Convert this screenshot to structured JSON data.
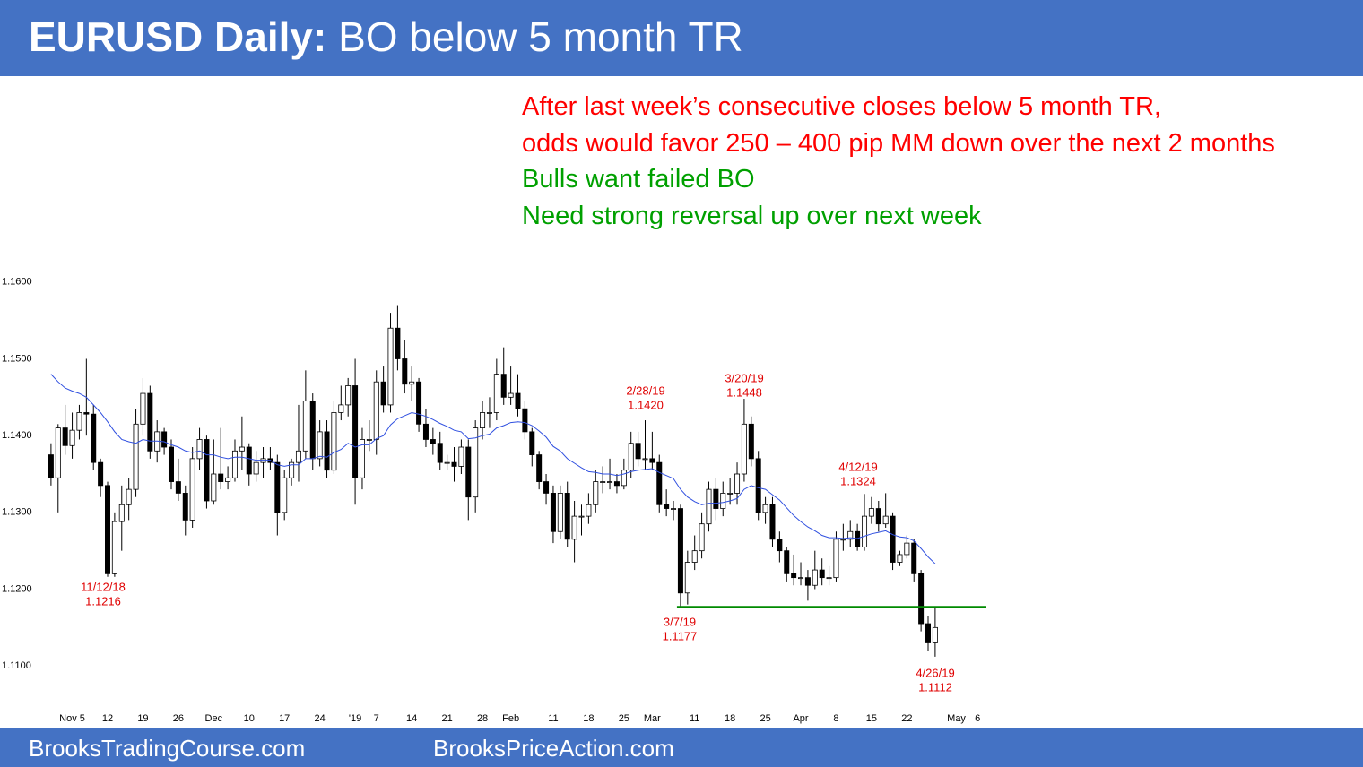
{
  "header": {
    "title_bold": "EURUSD Daily:",
    "title_rest": "BO below 5 month TR"
  },
  "notes": [
    {
      "text": "After last week’s consecutive closes below 5 month TR,",
      "color": "#ff0000"
    },
    {
      "text": "odds would favor 250 – 400 pip MM down over the next 2 months",
      "color": "#ff0000"
    },
    {
      "text": "Bulls want failed BO",
      "color": "#00a000"
    },
    {
      "text": "Need strong reversal up over next week",
      "color": "#00a000"
    }
  ],
  "footer": [
    "BrooksTradingCourse.com",
    "BrooksPriceAction.com"
  ],
  "chart_data": {
    "type": "candlestick",
    "categories": [
      null,
      null,
      null,
      "Nov 5",
      null,
      null,
      null,
      null,
      "12",
      null,
      null,
      null,
      null,
      "19",
      null,
      null,
      null,
      null,
      "26",
      null,
      null,
      null,
      null,
      "Dec",
      null,
      null,
      null,
      null,
      "10",
      null,
      null,
      null,
      null,
      "17",
      null,
      null,
      null,
      null,
      "24",
      null,
      null,
      null,
      null,
      "'19",
      null,
      null,
      "7",
      null,
      null,
      null,
      null,
      "14",
      null,
      null,
      null,
      null,
      "21",
      null,
      null,
      null,
      null,
      "28",
      null,
      null,
      null,
      "Feb",
      null,
      null,
      null,
      null,
      null,
      "11",
      null,
      null,
      null,
      null,
      "18",
      null,
      null,
      null,
      null,
      "25",
      null,
      null,
      null,
      "Mar",
      null,
      null,
      null,
      null,
      null,
      "11",
      null,
      null,
      null,
      null,
      "18",
      null,
      null,
      null,
      null,
      "25",
      null,
      null,
      null,
      null,
      "Apr",
      null,
      null,
      null,
      null,
      "8",
      null,
      null,
      null,
      null,
      "15",
      null,
      null,
      null,
      null,
      "22",
      null,
      null,
      null,
      null,
      null,
      null,
      "May",
      null,
      null,
      "6"
    ],
    "open": [
      1.1375,
      1.1345,
      1.141,
      1.1387,
      1.1407,
      1.143,
      1.1428,
      1.1365,
      1.1335,
      1.122,
      1.1288,
      1.131,
      1.133,
      1.1415,
      1.1455,
      1.138,
      1.1405,
      1.1385,
      1.134,
      1.1325,
      1.129,
      1.137,
      1.1395,
      1.1315,
      1.135,
      1.134,
      1.1345,
      1.138,
      1.1385,
      1.135,
      1.1365,
      1.137,
      1.1365,
      1.13,
      1.1345,
      1.1365,
      1.138,
      1.1445,
      1.137,
      1.1405,
      1.1355,
      1.143,
      1.144,
      1.1465,
      1.1345,
      1.1395,
      1.1395,
      1.147,
      1.144,
      1.154,
      1.15,
      1.1467,
      1.147,
      1.1415,
      1.1395,
      1.139,
      1.1365,
      1.1365,
      1.136,
      1.1385,
      1.132,
      1.141,
      1.143,
      1.143,
      1.148,
      1.145,
      1.1455,
      1.1435,
      1.1405,
      1.1375,
      1.134,
      1.1325,
      1.1275,
      1.1325,
      1.1265,
      1.1295,
      1.1295,
      1.131,
      1.134,
      1.134,
      1.134,
      1.1335,
      1.1355,
      1.139,
      1.137,
      1.137,
      1.1365,
      1.131,
      1.1305,
      1.1305,
      1.1195,
      1.1235,
      1.125,
      1.1285,
      1.133,
      1.1305,
      1.1325,
      1.1325,
      1.135,
      1.1415,
      1.137,
      1.13,
      1.131,
      1.1265,
      1.125,
      1.122,
      1.1215,
      1.1215,
      1.1205,
      1.1225,
      1.1215,
      1.1215,
      1.1265,
      1.1265,
      1.1275,
      1.1255,
      1.1295,
      1.1305,
      1.1285,
      1.1295,
      1.1235,
      1.1245,
      1.126,
      1.122,
      1.1155,
      1.113,
      null,
      null,
      null,
      null,
      null,
      null
    ],
    "high": [
      1.139,
      1.1415,
      1.144,
      1.143,
      1.144,
      1.15,
      1.144,
      1.137,
      1.134,
      1.13,
      1.1335,
      1.1345,
      1.1435,
      1.1475,
      1.1465,
      1.142,
      1.141,
      1.1395,
      1.137,
      1.1335,
      1.1385,
      1.141,
      1.14,
      1.1395,
      1.141,
      1.136,
      1.1395,
      1.1425,
      1.139,
      1.138,
      1.1385,
      1.1385,
      1.1375,
      1.1355,
      1.137,
      1.144,
      1.1485,
      1.1455,
      1.142,
      1.142,
      1.1445,
      1.1465,
      1.1475,
      1.15,
      1.141,
      1.142,
      1.1485,
      1.149,
      1.156,
      1.157,
      1.1525,
      1.149,
      1.1475,
      1.1435,
      1.141,
      1.1405,
      1.1375,
      1.1385,
      1.1395,
      1.1395,
      1.142,
      1.1445,
      1.145,
      1.15,
      1.1515,
      1.149,
      1.148,
      1.1445,
      1.141,
      1.138,
      1.135,
      1.1335,
      1.1335,
      1.134,
      1.1315,
      1.131,
      1.1325,
      1.1355,
      1.136,
      1.137,
      1.135,
      1.137,
      1.1405,
      1.1405,
      1.142,
      1.1405,
      1.1375,
      1.133,
      1.1315,
      1.131,
      1.125,
      1.127,
      1.13,
      1.134,
      1.1345,
      1.134,
      1.1345,
      1.1365,
      1.1448,
      1.1425,
      1.138,
      1.132,
      1.132,
      1.1275,
      1.1255,
      1.1245,
      1.1235,
      1.1225,
      1.125,
      1.124,
      1.123,
      1.1275,
      1.1285,
      1.129,
      1.1285,
      1.1324,
      1.132,
      1.1315,
      1.1325,
      1.13,
      1.125,
      1.127,
      1.1265,
      1.1225,
      1.1165,
      1.1175,
      null,
      null,
      null,
      null,
      null,
      null
    ],
    "low": [
      1.1335,
      1.13,
      1.1375,
      1.137,
      1.1395,
      1.14,
      1.1355,
      1.132,
      1.1216,
      1.1216,
      1.125,
      1.129,
      1.132,
      1.14,
      1.137,
      1.1365,
      1.1375,
      1.133,
      1.1315,
      1.127,
      1.128,
      1.1355,
      1.1305,
      1.131,
      1.133,
      1.133,
      1.134,
      1.1355,
      1.1335,
      1.134,
      1.1345,
      1.1355,
      1.127,
      1.129,
      1.1335,
      1.134,
      1.137,
      1.1355,
      1.136,
      1.1345,
      1.135,
      1.142,
      1.1425,
      1.131,
      1.133,
      1.138,
      1.1375,
      1.143,
      1.143,
      1.1485,
      1.1455,
      1.1445,
      1.1405,
      1.1385,
      1.1375,
      1.1355,
      1.1355,
      1.134,
      1.135,
      1.129,
      1.13,
      1.1395,
      1.141,
      1.142,
      1.144,
      1.144,
      1.1425,
      1.1395,
      1.136,
      1.133,
      1.131,
      1.126,
      1.1265,
      1.1255,
      1.1235,
      1.127,
      1.1285,
      1.13,
      1.1325,
      1.133,
      1.1325,
      1.133,
      1.1345,
      1.136,
      1.1355,
      1.1355,
      1.13,
      1.1295,
      1.129,
      1.1177,
      1.118,
      1.1225,
      1.124,
      1.1275,
      1.129,
      1.1295,
      1.131,
      1.131,
      1.134,
      1.136,
      1.129,
      1.1285,
      1.1255,
      1.1235,
      1.121,
      1.1205,
      1.1205,
      1.1185,
      1.12,
      1.1205,
      1.1205,
      1.121,
      1.125,
      1.1255,
      1.125,
      1.125,
      1.1285,
      1.1275,
      1.128,
      1.1225,
      1.123,
      1.124,
      1.121,
      1.1145,
      1.112,
      1.1112,
      null,
      null,
      null,
      null,
      null,
      null
    ],
    "close": [
      1.1345,
      1.141,
      1.1387,
      1.1407,
      1.143,
      1.1428,
      1.1365,
      1.1335,
      1.122,
      1.1288,
      1.131,
      1.133,
      1.1415,
      1.1455,
      1.138,
      1.1405,
      1.1385,
      1.134,
      1.1325,
      1.129,
      1.137,
      1.1395,
      1.1315,
      1.135,
      1.134,
      1.1345,
      1.138,
      1.1385,
      1.135,
      1.1365,
      1.137,
      1.1365,
      1.13,
      1.1345,
      1.1365,
      1.138,
      1.1445,
      1.137,
      1.1405,
      1.1355,
      1.143,
      1.144,
      1.1465,
      1.1345,
      1.1395,
      1.1395,
      1.147,
      1.144,
      1.154,
      1.15,
      1.1467,
      1.147,
      1.1415,
      1.1395,
      1.139,
      1.1365,
      1.1365,
      1.136,
      1.1385,
      1.132,
      1.141,
      1.143,
      1.143,
      1.148,
      1.145,
      1.1455,
      1.1435,
      1.1405,
      1.1375,
      1.134,
      1.1325,
      1.1275,
      1.1325,
      1.1265,
      1.1295,
      1.1295,
      1.131,
      1.134,
      1.134,
      1.134,
      1.1335,
      1.1355,
      1.139,
      1.137,
      1.137,
      1.1365,
      1.131,
      1.1305,
      1.1305,
      1.1195,
      1.1235,
      1.125,
      1.1285,
      1.133,
      1.1305,
      1.1325,
      1.1325,
      1.135,
      1.1415,
      1.137,
      1.13,
      1.131,
      1.1265,
      1.125,
      1.122,
      1.1215,
      1.1215,
      1.1205,
      1.1225,
      1.1215,
      1.1215,
      1.1265,
      1.1265,
      1.1275,
      1.1255,
      1.1295,
      1.1305,
      1.1285,
      1.1295,
      1.1235,
      1.1245,
      1.126,
      1.122,
      1.1155,
      1.113,
      1.115,
      null,
      null,
      null,
      null,
      null,
      null
    ],
    "ema": [
      1.148,
      1.147,
      1.1462,
      1.1458,
      1.1455,
      1.145,
      1.144,
      1.143,
      1.1418,
      1.1405,
      1.1395,
      1.1392,
      1.139,
      1.1395,
      1.1393,
      1.1393,
      1.1392,
      1.1388,
      1.1385,
      1.138,
      1.1378,
      1.138,
      1.1375,
      1.1375,
      1.1372,
      1.137,
      1.1372,
      1.1372,
      1.137,
      1.1368,
      1.1368,
      1.1368,
      1.1362,
      1.136,
      1.1362,
      1.1362,
      1.137,
      1.137,
      1.1373,
      1.1372,
      1.1378,
      1.1382,
      1.139,
      1.1385,
      1.1388,
      1.1388,
      1.1396,
      1.14,
      1.1414,
      1.1422,
      1.1426,
      1.143,
      1.1428,
      1.1425,
      1.1421,
      1.1416,
      1.1412,
      1.1407,
      1.1405,
      1.1396,
      1.1397,
      1.14,
      1.1402,
      1.141,
      1.1413,
      1.1417,
      1.1418,
      1.1417,
      1.1413,
      1.1406,
      1.1398,
      1.1386,
      1.138,
      1.137,
      1.1364,
      1.1358,
      1.1353,
      1.1352,
      1.135,
      1.135,
      1.1348,
      1.135,
      1.1353,
      1.1355,
      1.1356,
      1.1357,
      1.1352,
      1.1348,
      1.1344,
      1.133,
      1.132,
      1.1314,
      1.131,
      1.1312,
      1.1312,
      1.1313,
      1.1315,
      1.1318,
      1.133,
      1.1335,
      1.1332,
      1.133,
      1.1323,
      1.1316,
      1.1306,
      1.1296,
      1.1288,
      1.1281,
      1.1276,
      1.127,
      1.1267,
      1.1267,
      1.1266,
      1.1267,
      1.1266,
      1.1269,
      1.1272,
      1.1274,
      1.1276,
      1.1271,
      1.1268,
      1.1267,
      1.1263,
      1.1253,
      1.1242,
      1.1233,
      null,
      null,
      null,
      null,
      null,
      null
    ],
    "up_color": "#ffffff",
    "down_color": "#000000",
    "ema_color": "#3050e0",
    "support_level": 1.1177,
    "support_color": "#008a00",
    "ylim": [
      1.105,
      1.165
    ],
    "yticks": [
      {
        "value": 1.11,
        "label": "1.1100"
      },
      {
        "value": 1.12,
        "label": "1.1200"
      },
      {
        "value": 1.13,
        "label": "1.1300"
      },
      {
        "value": 1.14,
        "label": "1.1400"
      },
      {
        "value": 1.15,
        "label": "1.1500"
      },
      {
        "value": 1.16,
        "label": "1.1600"
      }
    ],
    "grid": false,
    "annotations": [
      {
        "date": "11/12/18",
        "price": "1.1216"
      },
      {
        "date": "2/28/19",
        "price": "1.1420"
      },
      {
        "date": "3/20/19",
        "price": "1.1448"
      },
      {
        "date": "4/12/19",
        "price": "1.1324"
      },
      {
        "date": "3/7/19",
        "price": "1.1177"
      },
      {
        "date": "4/26/19",
        "price": "1.1112"
      }
    ]
  }
}
